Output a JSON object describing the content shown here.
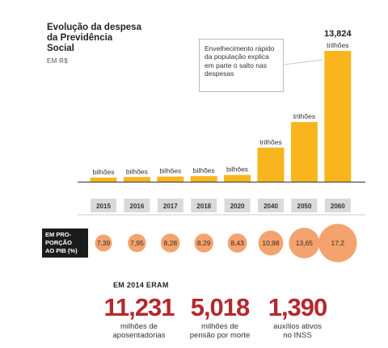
{
  "title_lines": [
    "Evolução da despesa",
    "da Previdência",
    "Social"
  ],
  "unit": "EM R$",
  "note": "Envelhecimento rápido da população explica em parte o salto nas despesas",
  "proportion_label_lines": [
    "EM PRO-",
    "PORÇÃO",
    "AO PIB (%)"
  ],
  "stats_heading": "EM 2014 ERAM",
  "stats": [
    {
      "value": "11,231",
      "label": "milhões de\naposentadorias"
    },
    {
      "value": "5,018",
      "label": "milhões de\npensão por morte"
    },
    {
      "value": "1,390",
      "label": "auxílios ativos\nno INSS"
    }
  ],
  "chart_data": {
    "type": "bar",
    "categories": [
      "2015",
      "2016",
      "2017",
      "2018",
      "2020",
      "2040",
      "2050",
      "2060"
    ],
    "values": [
      0.43,
      0.49,
      0.54,
      0.59,
      0.71,
      3.6,
      6.3,
      13.824
    ],
    "bar_labels": [
      "bilhões",
      "bilhões",
      "bilhões",
      "bilhões",
      "bilhões",
      "trilhões",
      "trilhões",
      "trilhões"
    ],
    "top_value_label": "13,824",
    "pib_percent": [
      7.39,
      7.95,
      8.28,
      8.29,
      8.43,
      10.98,
      13.65,
      17.2
    ],
    "pib_percent_labels": [
      "7,39",
      "7,95",
      "8,28",
      "8,29",
      "8,43",
      "10,98",
      "13,65",
      "17,2"
    ],
    "colors": {
      "bar": "#f9b51e",
      "circle": "#f4a36e",
      "axis": "#333333",
      "year_box": "#d9d9d9",
      "stat_number": "#b3292e"
    }
  }
}
